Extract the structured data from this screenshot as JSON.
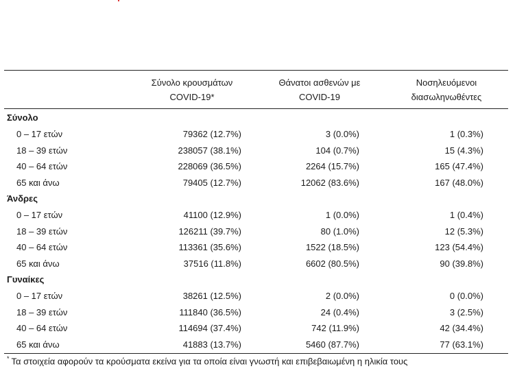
{
  "header": {
    "col1": [
      "Σύνολο κρουσμάτων",
      "COVID-19*"
    ],
    "col2": [
      "Θάνατοι ασθενών με",
      "COVID-19"
    ],
    "col3": [
      "Νοσηλευόμενοι",
      "διασωληνωθέντες"
    ]
  },
  "groups": [
    {
      "title": "Σύνολο",
      "rows": [
        {
          "label": "0 – 17 ετών",
          "cases": "79362 (12.7%)",
          "deaths": "3 (0.0%)",
          "icu": "1 (0.3%)"
        },
        {
          "label": "18 – 39 ετών",
          "cases": "238057 (38.1%)",
          "deaths": "104 (0.7%)",
          "icu": "15 (4.3%)"
        },
        {
          "label": "40 – 64 ετών",
          "cases": "228069 (36.5%)",
          "deaths": "2264 (15.7%)",
          "icu": "165 (47.4%)"
        },
        {
          "label": "65 και άνω",
          "cases": "79405 (12.7%)",
          "deaths": "12062 (83.6%)",
          "icu": "167 (48.0%)"
        }
      ]
    },
    {
      "title": "Άνδρες",
      "rows": [
        {
          "label": "0 – 17 ετών",
          "cases": "41100 (12.9%)",
          "deaths": "1 (0.0%)",
          "icu": "1 (0.4%)"
        },
        {
          "label": "18 – 39 ετών",
          "cases": "126211 (39.7%)",
          "deaths": "80 (1.0%)",
          "icu": "12 (5.3%)"
        },
        {
          "label": "40 – 64 ετών",
          "cases": "113361 (35.6%)",
          "deaths": "1522 (18.5%)",
          "icu": "123 (54.4%)"
        },
        {
          "label": "65 και άνω",
          "cases": "37516 (11.8%)",
          "deaths": "6602 (80.5%)",
          "icu": "90 (39.8%)"
        }
      ]
    },
    {
      "title": "Γυναίκες",
      "rows": [
        {
          "label": "0 – 17 ετών",
          "cases": "38261 (12.5%)",
          "deaths": "2 (0.0%)",
          "icu": "0 (0.0%)"
        },
        {
          "label": "18 – 39 ετών",
          "cases": "111840 (36.5%)",
          "deaths": "24 (0.4%)",
          "icu": "3 (2.5%)"
        },
        {
          "label": "40 – 64 ετών",
          "cases": "114694 (37.4%)",
          "deaths": "742 (11.9%)",
          "icu": "42 (34.4%)"
        },
        {
          "label": "65 και άνω",
          "cases": "41883 (13.7%)",
          "deaths": "5460 (87.7%)",
          "icu": "77 (63.1%)"
        }
      ]
    }
  ],
  "footnote": {
    "mark": "*",
    "text": "Τα στοιχεία αφορούν τα κρούσματα εκείνα για τα οποία είναι γνωστή και επιβεβαιωμένη η ηλικία τους"
  }
}
